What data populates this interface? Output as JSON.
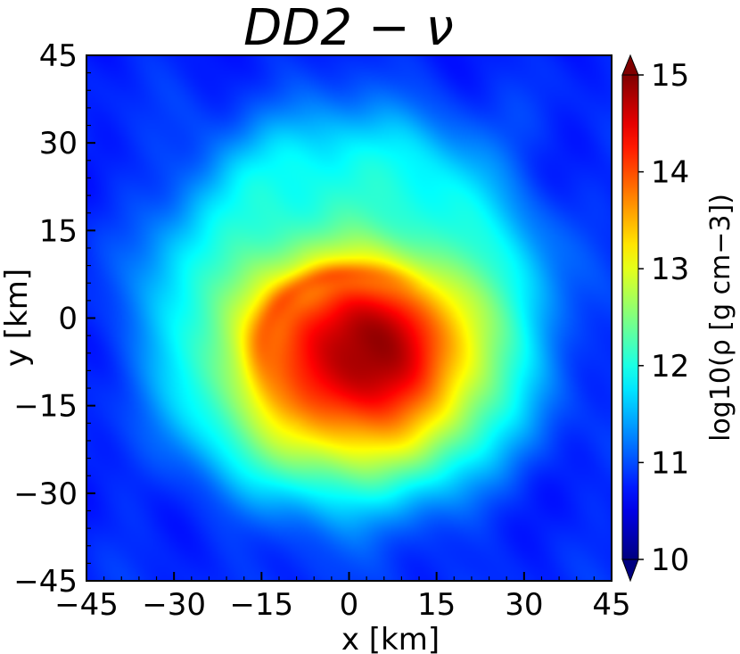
{
  "chart_data": {
    "type": "heatmap",
    "title": "DD2 − ν",
    "xlabel": "x [km]",
    "ylabel": "y [km]",
    "xlim": [
      -45,
      45
    ],
    "ylim": [
      -45,
      45
    ],
    "x_ticks": [
      -45,
      -30,
      -15,
      0,
      15,
      30,
      45
    ],
    "y_ticks": [
      -45,
      -30,
      -15,
      0,
      15,
      30,
      45
    ],
    "x_tick_labels": [
      "−45",
      "−30",
      "−15",
      "0",
      "15",
      "30",
      "45"
    ],
    "y_tick_labels": [
      "−45",
      "−30",
      "−15",
      "0",
      "15",
      "30",
      "45"
    ],
    "colorbar": {
      "label": "log10(ρ [g cm−3])",
      "range": [
        10,
        15
      ],
      "ticks": [
        10,
        11,
        12,
        13,
        14,
        15
      ],
      "tick_labels": [
        "10",
        "11",
        "12",
        "13",
        "14",
        "15"
      ],
      "colormap": "jet",
      "extend": "both"
    },
    "density_field": {
      "description_units": "log10 g/cm^3",
      "core_center_km": [
        3,
        -5
      ],
      "core_peak_value": 14.9,
      "background_value": 11.3,
      "corner_value": 10.8,
      "ring_plateau_value": 12.1,
      "ring_radius_km": 34,
      "halo_value": 12.7,
      "halo_radius_km": 22
    },
    "grid": false,
    "legend": "none"
  },
  "colors": {
    "jet_stops": [
      "#00007f",
      "#0000ff",
      "#007fff",
      "#00ffff",
      "#7fff7f",
      "#ffff00",
      "#ff7f00",
      "#ff0000",
      "#7f0000"
    ]
  }
}
